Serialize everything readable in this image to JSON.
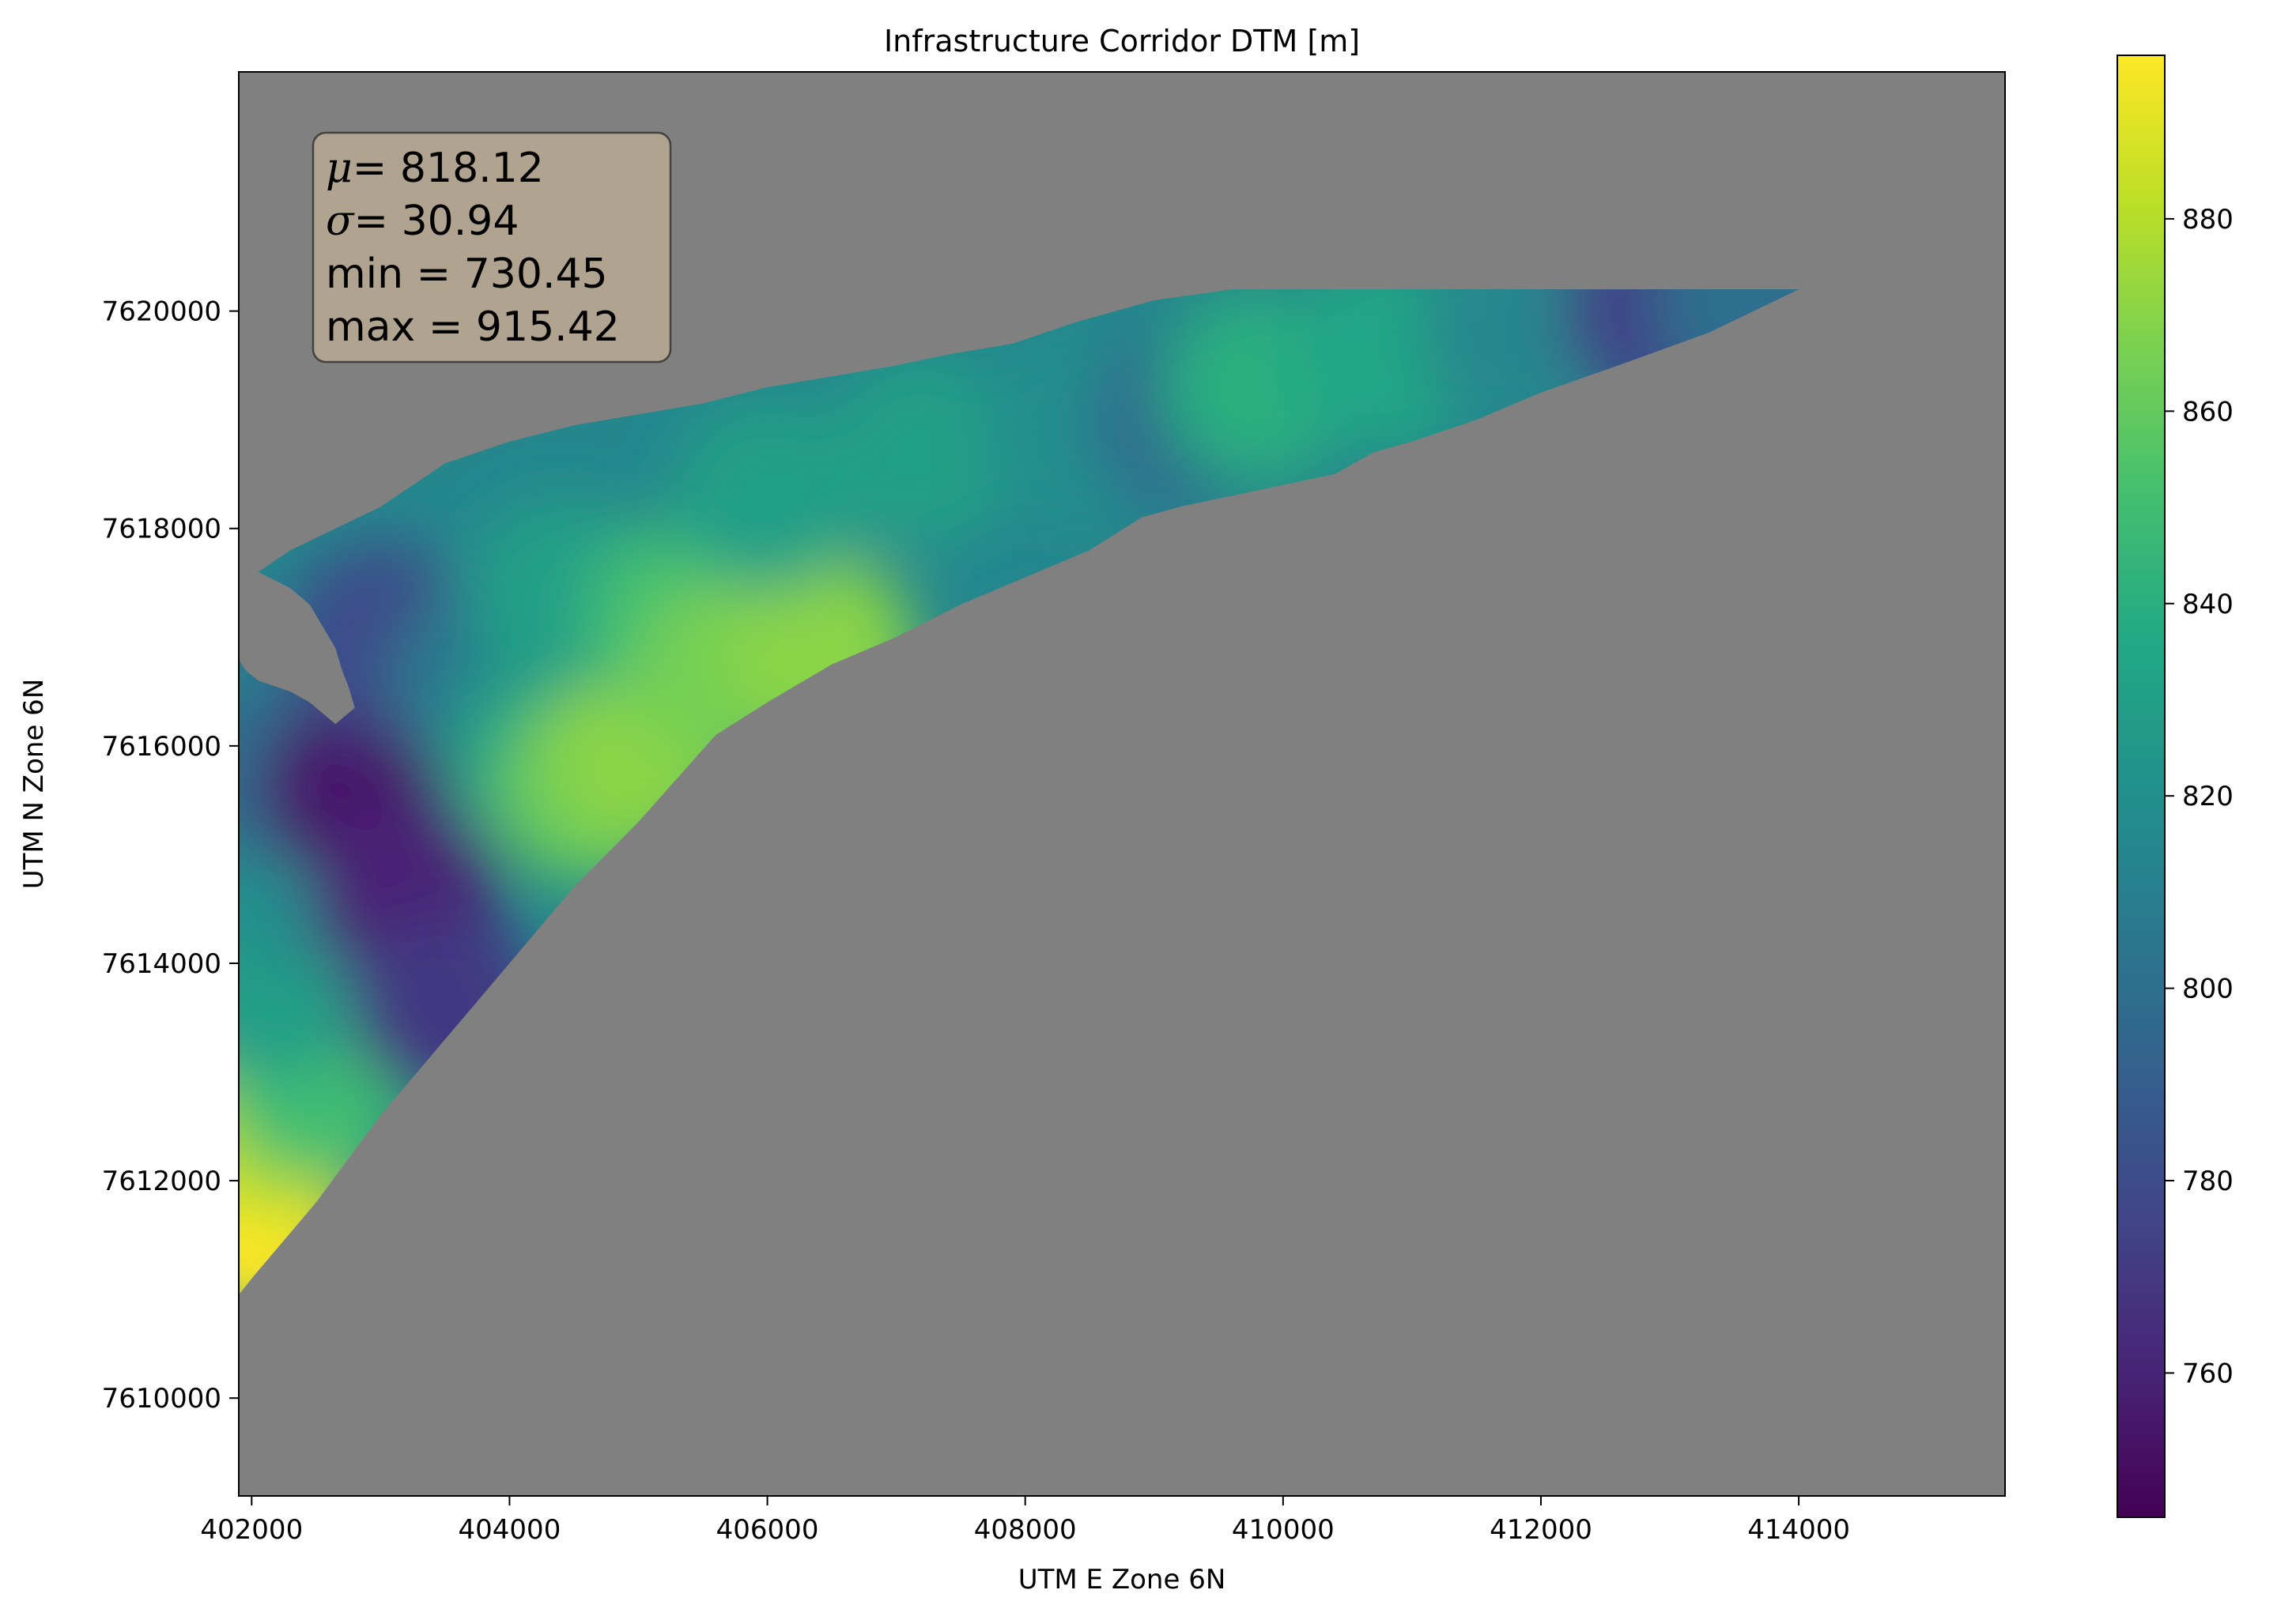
{
  "chart_data": {
    "type": "heatmap",
    "title": "Infrastructure Corridor DTM [m]",
    "xlabel": "UTM E Zone 6N",
    "ylabel": "UTM N Zone 6N",
    "xlim": [
      401900,
      415600
    ],
    "ylim": [
      7609100,
      7622200
    ],
    "x_ticks": [
      402000,
      404000,
      406000,
      408000,
      410000,
      412000,
      414000
    ],
    "y_ticks": [
      7610000,
      7612000,
      7614000,
      7616000,
      7618000,
      7620000
    ],
    "colorbar": {
      "colormap": "viridis",
      "range": [
        745,
        897
      ],
      "ticks": [
        760,
        780,
        800,
        820,
        840,
        860,
        880
      ]
    },
    "nodata_color": "#808080",
    "stats_box": {
      "mu_label": "μ",
      "mu_value": "= 818.12",
      "sigma_label": "σ",
      "sigma_value": "= 30.94",
      "min_line": "min = 730.45",
      "max_line": "max = 915.42"
    },
    "corridor_outline": [
      [
        402050,
        7617600
      ],
      [
        402300,
        7617800
      ],
      [
        403000,
        7618200
      ],
      [
        403500,
        7618600
      ],
      [
        404000,
        7618800
      ],
      [
        404500,
        7618950
      ],
      [
        405000,
        7619050
      ],
      [
        405500,
        7619150
      ],
      [
        406000,
        7619300
      ],
      [
        406500,
        7619400
      ],
      [
        407000,
        7619500
      ],
      [
        407400,
        7619600
      ],
      [
        407900,
        7619700
      ],
      [
        408400,
        7619900
      ],
      [
        409000,
        7620100
      ],
      [
        409600,
        7620200
      ],
      [
        410400,
        7620200
      ],
      [
        411200,
        7620200
      ],
      [
        412000,
        7620200
      ],
      [
        412800,
        7620200
      ],
      [
        414000,
        7620200
      ],
      [
        413300,
        7619800
      ],
      [
        412600,
        7619500
      ],
      [
        412000,
        7619250
      ],
      [
        411500,
        7619000
      ],
      [
        411000,
        7618800
      ],
      [
        410700,
        7618700
      ],
      [
        410400,
        7618500
      ],
      [
        410000,
        7618400
      ],
      [
        409600,
        7618300
      ],
      [
        409200,
        7618200
      ],
      [
        408900,
        7618100
      ],
      [
        408500,
        7617800
      ],
      [
        408000,
        7617550
      ],
      [
        407500,
        7617300
      ],
      [
        407000,
        7617000
      ],
      [
        406500,
        7616750
      ],
      [
        406000,
        7616400
      ],
      [
        405600,
        7616100
      ],
      [
        405000,
        7615300
      ],
      [
        404500,
        7614700
      ],
      [
        404000,
        7614000
      ],
      [
        403500,
        7613300
      ],
      [
        403000,
        7612600
      ],
      [
        402500,
        7611800
      ],
      [
        402000,
        7611100
      ],
      [
        401900,
        7610950
      ],
      [
        401900,
        7616800
      ],
      [
        401950,
        7616700
      ],
      [
        402050,
        7616600
      ],
      [
        402300,
        7616500
      ],
      [
        402450,
        7616400
      ],
      [
        402550,
        7616300
      ],
      [
        402650,
        7616200
      ],
      [
        402800,
        7616350
      ],
      [
        402750,
        7616550
      ],
      [
        402700,
        7616700
      ],
      [
        402650,
        7616900
      ],
      [
        402550,
        7617100
      ],
      [
        402450,
        7617300
      ],
      [
        402300,
        7617450
      ]
    ],
    "elevation_bands": [
      {
        "x": 402000,
        "y": 7611600,
        "value": 897
      },
      {
        "x": 402200,
        "y": 7612500,
        "value": 880
      },
      {
        "x": 402500,
        "y": 7612900,
        "value": 850
      },
      {
        "x": 402100,
        "y": 7613800,
        "value": 830
      },
      {
        "x": 402300,
        "y": 7614800,
        "value": 820
      },
      {
        "x": 402100,
        "y": 7615800,
        "value": 800
      },
      {
        "x": 402800,
        "y": 7615600,
        "value": 755
      },
      {
        "x": 403200,
        "y": 7614600,
        "value": 760
      },
      {
        "x": 403500,
        "y": 7613600,
        "value": 770
      },
      {
        "x": 403000,
        "y": 7617000,
        "value": 780
      },
      {
        "x": 403800,
        "y": 7616600,
        "value": 805
      },
      {
        "x": 404200,
        "y": 7615900,
        "value": 830
      },
      {
        "x": 404600,
        "y": 7615600,
        "value": 860
      },
      {
        "x": 405000,
        "y": 7615900,
        "value": 870
      },
      {
        "x": 404400,
        "y": 7617400,
        "value": 830
      },
      {
        "x": 405300,
        "y": 7617200,
        "value": 850
      },
      {
        "x": 405700,
        "y": 7616700,
        "value": 865
      },
      {
        "x": 406400,
        "y": 7616900,
        "value": 870
      },
      {
        "x": 406000,
        "y": 7618300,
        "value": 830
      },
      {
        "x": 407200,
        "y": 7618700,
        "value": 830
      },
      {
        "x": 408400,
        "y": 7618900,
        "value": 820
      },
      {
        "x": 409200,
        "y": 7619000,
        "value": 800
      },
      {
        "x": 409800,
        "y": 7619300,
        "value": 840
      },
      {
        "x": 410800,
        "y": 7619600,
        "value": 835
      },
      {
        "x": 411800,
        "y": 7619800,
        "value": 815
      },
      {
        "x": 412900,
        "y": 7620000,
        "value": 775
      },
      {
        "x": 413600,
        "y": 7620100,
        "value": 800
      }
    ]
  }
}
